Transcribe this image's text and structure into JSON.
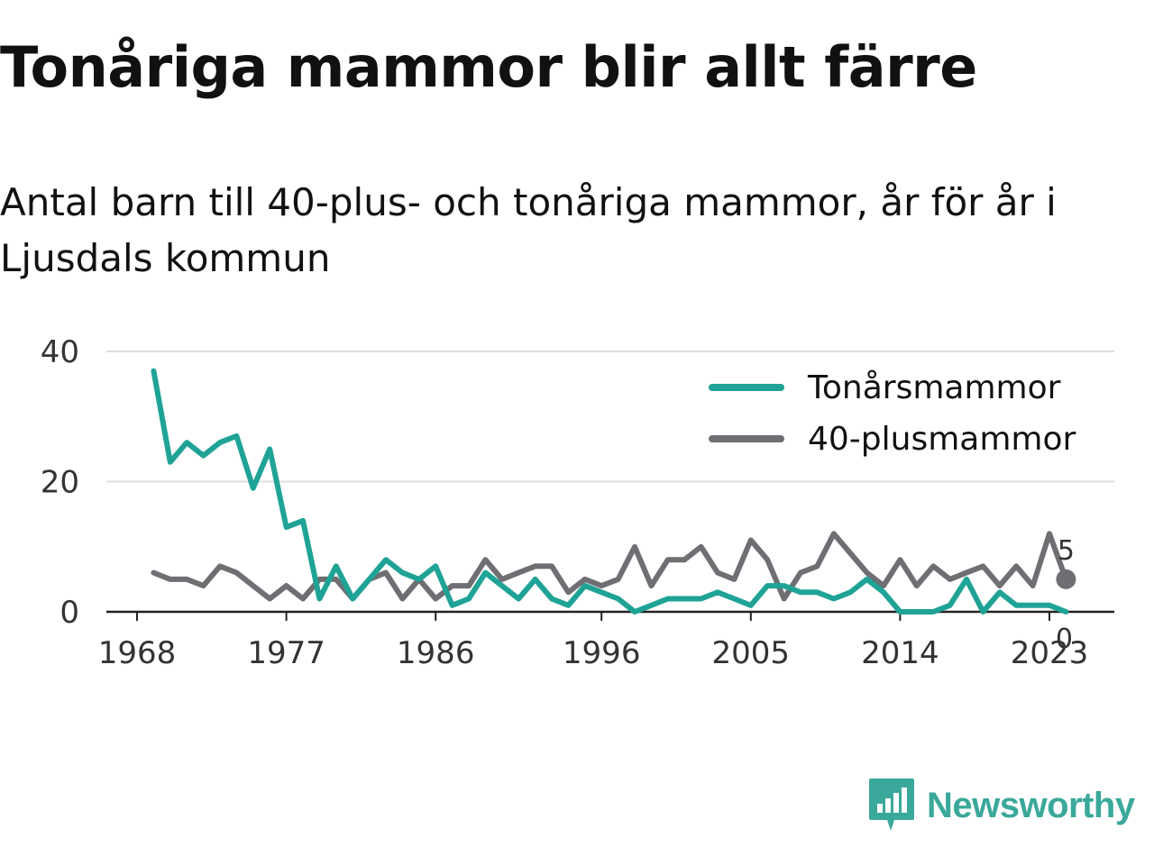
{
  "title": "Tonåriga mammor blir allt färre",
  "subtitle": "Antal barn till 40-plus- och tonåriga mammor, år för år i Ljusdals kommun",
  "brand": {
    "name": "Newsworthy",
    "icon": "newsworthy-logo-icon",
    "color": "#3aa89a"
  },
  "chart_data": {
    "type": "line",
    "title": "Tonåriga mammor blir allt färre",
    "subtitle": "Antal barn till 40-plus- och tonåriga mammor, år för år i Ljusdals kommun",
    "xlabel": "",
    "ylabel": "",
    "x": [
      1969,
      1970,
      1971,
      1972,
      1973,
      1974,
      1975,
      1976,
      1977,
      1978,
      1979,
      1980,
      1981,
      1982,
      1983,
      1984,
      1985,
      1986,
      1987,
      1988,
      1989,
      1990,
      1991,
      1992,
      1993,
      1994,
      1995,
      1996,
      1997,
      1998,
      1999,
      2000,
      2001,
      2002,
      2003,
      2004,
      2005,
      2006,
      2007,
      2008,
      2009,
      2010,
      2011,
      2012,
      2013,
      2014,
      2015,
      2016,
      2017,
      2018,
      2019,
      2020,
      2021,
      2022,
      2023,
      2024
    ],
    "series": [
      {
        "name": "Tonårsmammor",
        "color": "#1fa396",
        "values": [
          37,
          23,
          26,
          24,
          26,
          27,
          19,
          25,
          13,
          14,
          2,
          7,
          2,
          5,
          8,
          6,
          5,
          7,
          1,
          2,
          6,
          4,
          2,
          5,
          2,
          1,
          4,
          3,
          2,
          0,
          1,
          2,
          2,
          2,
          3,
          2,
          1,
          4,
          4,
          3,
          3,
          2,
          3,
          5,
          3,
          0,
          0,
          0,
          1,
          5,
          0,
          3,
          1,
          1,
          1,
          0
        ]
      },
      {
        "name": "40-plusmammor",
        "color": "#6e6e73",
        "values": [
          6,
          5,
          5,
          4,
          7,
          6,
          4,
          2,
          4,
          2,
          5,
          5,
          2,
          5,
          6,
          2,
          5,
          2,
          4,
          4,
          8,
          5,
          6,
          7,
          7,
          3,
          5,
          4,
          5,
          10,
          4,
          8,
          8,
          10,
          6,
          5,
          11,
          8,
          2,
          6,
          7,
          12,
          9,
          6,
          4,
          8,
          4,
          7,
          5,
          6,
          7,
          4,
          7,
          4,
          12,
          5
        ]
      }
    ],
    "x_ticks": [
      "1968",
      "1977",
      "1986",
      "1996",
      "2005",
      "2014",
      "2023"
    ],
    "y_ticks": [
      "0",
      "20",
      "40"
    ],
    "xlim": [
      1968,
      2024
    ],
    "ylim": [
      0,
      40
    ],
    "grid": "horizontal",
    "legend": "top-right",
    "end_labels": {
      "Tonårsmammor": "0",
      "40-plusmammor": "5"
    }
  }
}
